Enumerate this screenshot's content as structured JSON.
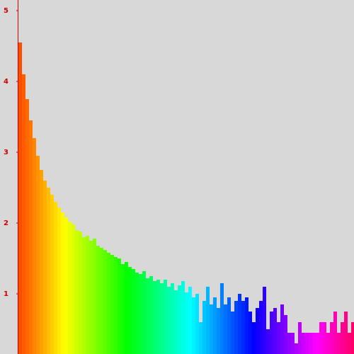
{
  "chart_data": {
    "type": "bar",
    "values": [
      4.55,
      4.1,
      3.75,
      3.45,
      3.2,
      2.95,
      2.75,
      2.6,
      2.5,
      2.4,
      2.3,
      2.22,
      2.15,
      2.08,
      2.02,
      1.98,
      1.9,
      1.88,
      1.8,
      1.82,
      1.75,
      1.78,
      1.68,
      1.65,
      1.62,
      1.58,
      1.55,
      1.52,
      1.5,
      1.42,
      1.45,
      1.38,
      1.35,
      1.3,
      1.28,
      1.32,
      1.22,
      1.25,
      1.18,
      1.2,
      1.15,
      1.2,
      1.1,
      1.15,
      1.05,
      1.12,
      1.18,
      1.02,
      1.1,
      0.95,
      1.0,
      0.6,
      0.9,
      1.1,
      0.85,
      0.95,
      0.8,
      1.15,
      0.85,
      0.95,
      0.75,
      0.9,
      1.0,
      0.9,
      0.95,
      0.75,
      0.6,
      0.8,
      0.9,
      1.1,
      0.5,
      0.75,
      0.8,
      0.6,
      0.85,
      0.7,
      0.45,
      0.45,
      0.3,
      0.6,
      0.45,
      0.45,
      0.45,
      0.45,
      0.45,
      0.6,
      0.6,
      0.45,
      0.6,
      0.75,
      0.45,
      0.6,
      0.75,
      0.45,
      0.6
    ],
    "colors": {
      "hue_from": 18,
      "hue_to": 335
    },
    "ylim": [
      0.15,
      5.15
    ],
    "yticks": [
      1,
      2,
      3,
      4,
      5
    ],
    "axis_color": "#cc0000",
    "background": "#d8d8d8"
  }
}
